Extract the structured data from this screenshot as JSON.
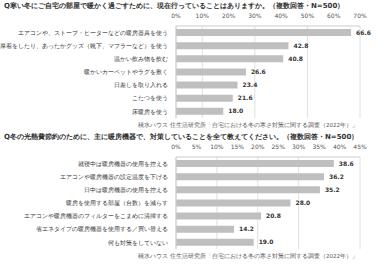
{
  "chart_data": [
    {
      "type": "bar",
      "orientation": "horizontal",
      "title": "Q寒い冬にご自宅の部屋で暖かく過ごすために、現在行っていることはありますか。（複数回答・N=500）",
      "categories": [
        "エアコンや、ストーブ・ヒーターなどの暖房器具を使う",
        "厚着をしたり、あったかグッズ（靴下、マフラーなど）を使う",
        "温かい飲み物を飲む",
        "暖かいカーペットやラグを敷く",
        "日差しを取り入れる",
        "こたつを使う",
        "床暖房を使う"
      ],
      "values": [
        66.6,
        42.8,
        40.8,
        26.6,
        23.4,
        21.6,
        18.0
      ],
      "value_labels": [
        "66.6",
        "42.8",
        "40.8",
        "26.6",
        "23.4",
        "21.6",
        "18.0"
      ],
      "color": "#bfbfbf",
      "data_labels": true,
      "grid": true,
      "xlim": [
        0,
        70
      ],
      "xticks": [
        {
          "value": 0,
          "label": "0%"
        },
        {
          "value": 10,
          "label": "10%"
        },
        {
          "value": 20,
          "label": "20%"
        },
        {
          "value": 30,
          "label": "30%"
        },
        {
          "value": 40,
          "label": "40%"
        },
        {
          "value": 50,
          "label": "50%"
        },
        {
          "value": 60,
          "label": "60%"
        },
        {
          "value": 70,
          "label": "70%"
        }
      ],
      "annotation": "積水ハウス 住生活研究所「自宅における冬の寒さ対策に関する調査（2022年）」"
    },
    {
      "type": "bar",
      "orientation": "horizontal",
      "title": "Q冬の光熱費節約のために、主に暖房機器で、対策していることを全て教えてください。（複数回答・N=500）",
      "categories": [
        "就寝中は暖房機器の使用を控える",
        "エアコンや暖房機器の設定温度を下げる",
        "日中は暖房機器の使用を控える",
        "暖房を使用する部屋（台数）を減らす",
        "エアコンや暖房機器のフィルターをこまめに清掃する",
        "省エネタイプの暖房機器を使用する／買い替える",
        "何も対策をしていない"
      ],
      "values": [
        38.6,
        36.2,
        35.2,
        28.0,
        20.8,
        14.2,
        19.0
      ],
      "value_labels": [
        "38.6",
        "36.2",
        "35.2",
        "28.0",
        "20.8",
        "14.2",
        "19.0"
      ],
      "color": "#bfbfbf",
      "data_labels": true,
      "grid": true,
      "xlim": [
        0,
        45
      ],
      "xticks": [
        {
          "value": 0,
          "label": "0%"
        },
        {
          "value": 5,
          "label": "5%"
        },
        {
          "value": 10,
          "label": "10%"
        },
        {
          "value": 15,
          "label": "15%"
        },
        {
          "value": 20,
          "label": "20%"
        },
        {
          "value": 25,
          "label": "25%"
        },
        {
          "value": 30,
          "label": "30%"
        },
        {
          "value": 35,
          "label": "35%"
        },
        {
          "value": 40,
          "label": "40%"
        },
        {
          "value": 45,
          "label": "45%"
        }
      ],
      "annotation": "積水ハウス 住生活研究所「自宅における冬の寒さ対策に関する調査（2022年）」"
    }
  ]
}
